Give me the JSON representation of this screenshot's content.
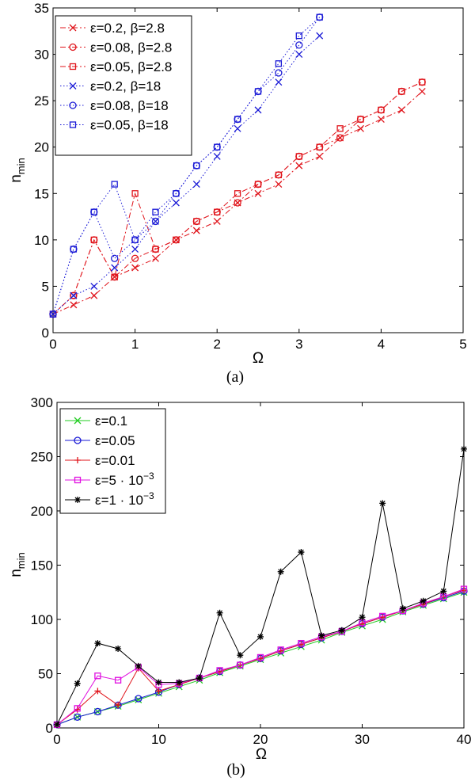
{
  "chart_data": [
    {
      "type": "line",
      "caption": "(a)",
      "xlabel": "Ω",
      "ylabel": "n",
      "ylabel_sub": "min",
      "xlim": [
        0,
        5
      ],
      "ylim": [
        0,
        35
      ],
      "xticks": [
        "0",
        "1",
        "2",
        "3",
        "4",
        "5"
      ],
      "yticks": [
        "0",
        "5",
        "10",
        "15",
        "20",
        "25",
        "30",
        "35"
      ],
      "legend_position": "top-left",
      "series": [
        {
          "name": "ε=0.2, β=2.8",
          "color": "#e0141b",
          "marker": "x",
          "dash": "dashdot",
          "x": [
            0,
            0.25,
            0.5,
            0.75,
            1,
            1.25,
            1.5,
            1.75,
            2,
            2.25,
            2.5,
            2.75,
            3,
            3.25,
            3.5,
            3.75,
            4,
            4.25,
            4.5
          ],
          "y": [
            2,
            3,
            4,
            6,
            7,
            8,
            10,
            11,
            12,
            14,
            15,
            16,
            18,
            19,
            21,
            22,
            23,
            24,
            26
          ]
        },
        {
          "name": "ε=0.08, β=2.8",
          "color": "#e0141b",
          "marker": "o",
          "dash": "dashdot",
          "x": [
            0,
            0.25,
            0.5,
            0.75,
            1,
            1.25,
            1.5,
            1.75,
            2,
            2.25,
            2.5,
            2.75,
            3,
            3.25,
            3.5,
            3.75,
            4,
            4.25,
            4.5
          ],
          "y": [
            2,
            4,
            10,
            6,
            8,
            9,
            10,
            12,
            13,
            14,
            16,
            17,
            19,
            20,
            21,
            23,
            24,
            26,
            27
          ]
        },
        {
          "name": "ε=0.05, β=2.8",
          "color": "#e0141b",
          "marker": "s",
          "dash": "dashdot",
          "x": [
            0,
            0.25,
            0.5,
            0.75,
            1,
            1.25,
            1.5,
            1.75,
            2,
            2.25,
            2.5,
            2.75,
            3,
            3.25,
            3.5,
            3.75,
            4,
            4.25,
            4.5
          ],
          "y": [
            2,
            4,
            10,
            6,
            15,
            9,
            10,
            12,
            13,
            15,
            16,
            17,
            19,
            20,
            22,
            23,
            24,
            26,
            27
          ]
        },
        {
          "name": "ε=0.2, β=18",
          "color": "#1a1ad6",
          "marker": "x",
          "dash": "dotted",
          "x": [
            0,
            0.25,
            0.5,
            0.75,
            1,
            1.25,
            1.5,
            1.75,
            2,
            2.25,
            2.5,
            2.75,
            3,
            3.25
          ],
          "y": [
            2,
            4,
            5,
            7,
            9,
            12,
            14,
            16,
            19,
            22,
            24,
            27,
            30,
            32
          ]
        },
        {
          "name": "ε=0.08, β=18",
          "color": "#1a1ad6",
          "marker": "o",
          "dash": "dotted",
          "x": [
            0,
            0.25,
            0.5,
            0.75,
            1,
            1.25,
            1.5,
            1.75,
            2,
            2.25,
            2.5,
            2.75,
            3,
            3.25
          ],
          "y": [
            2,
            9,
            13,
            8,
            10,
            12,
            15,
            18,
            20,
            23,
            26,
            28,
            31,
            34
          ]
        },
        {
          "name": "ε=0.05, β=18",
          "color": "#1a1ad6",
          "marker": "s",
          "dash": "dotted",
          "x": [
            0,
            0.25,
            0.5,
            0.75,
            1,
            1.25,
            1.5,
            1.75,
            2,
            2.25,
            2.5,
            2.75,
            3,
            3.25
          ],
          "y": [
            2,
            9,
            13,
            16,
            10,
            13,
            15,
            18,
            20,
            23,
            26,
            29,
            32,
            34
          ]
        }
      ]
    },
    {
      "type": "line",
      "caption": "(b)",
      "xlabel": "Ω",
      "ylabel": "n",
      "ylabel_sub": "min",
      "xlim": [
        0,
        40
      ],
      "ylim": [
        0,
        300
      ],
      "xticks": [
        "0",
        "10",
        "20",
        "30",
        "40"
      ],
      "yticks": [
        "0",
        "50",
        "100",
        "150",
        "200",
        "250",
        "300"
      ],
      "legend_position": "top-left",
      "series": [
        {
          "name": "ε=0.1",
          "color": "#22cc22",
          "marker": "x",
          "dash": "solid",
          "x": [
            0,
            2,
            4,
            6,
            8,
            10,
            12,
            14,
            16,
            18,
            20,
            22,
            24,
            26,
            28,
            30,
            32,
            34,
            36,
            38,
            40
          ],
          "y": [
            3,
            10,
            15,
            20,
            26,
            32,
            38,
            44,
            51,
            57,
            63,
            69,
            75,
            81,
            88,
            94,
            100,
            107,
            113,
            119,
            125
          ]
        },
        {
          "name": "ε=0.05",
          "color": "#1a1ad6",
          "marker": "o",
          "dash": "solid",
          "x": [
            0,
            2,
            4,
            6,
            8,
            10,
            12,
            14,
            16,
            18,
            20,
            22,
            24,
            26,
            28,
            30,
            32,
            34,
            36,
            38,
            40
          ],
          "y": [
            3,
            10,
            15,
            21,
            27,
            33,
            40,
            46,
            52,
            58,
            64,
            71,
            77,
            83,
            89,
            96,
            102,
            108,
            114,
            120,
            126
          ]
        },
        {
          "name": "ε=0.01",
          "color": "#e0141b",
          "marker": "+",
          "dash": "solid",
          "x": [
            0,
            2,
            4,
            6,
            8,
            10,
            12,
            14,
            16,
            18,
            20,
            22,
            24,
            26,
            28,
            30,
            32,
            34,
            36,
            38,
            40
          ],
          "y": [
            3,
            17,
            34,
            21,
            55,
            34,
            40,
            46,
            52,
            58,
            64,
            71,
            77,
            83,
            89,
            96,
            102,
            108,
            114,
            121,
            127
          ]
        },
        {
          "name": "ε=5 · 10",
          "name_sup": "−3",
          "color": "#e010e0",
          "marker": "s",
          "dash": "solid",
          "x": [
            0,
            2,
            4,
            6,
            8,
            10,
            12,
            14,
            16,
            18,
            20,
            22,
            24,
            26,
            28,
            30,
            32,
            34,
            36,
            38,
            40
          ],
          "y": [
            3,
            18,
            48,
            44,
            56,
            40,
            41,
            46,
            53,
            58,
            65,
            72,
            78,
            84,
            89,
            97,
            103,
            108,
            115,
            121,
            128
          ]
        },
        {
          "name": "ε=1 · 10",
          "name_sup": "−3",
          "color": "#000000",
          "marker": "*",
          "dash": "solid",
          "x": [
            0,
            2,
            4,
            6,
            8,
            10,
            12,
            14,
            16,
            18,
            20,
            22,
            24,
            26,
            28,
            30,
            32,
            34,
            36,
            38,
            40
          ],
          "y": [
            3,
            41,
            78,
            73,
            57,
            42,
            42,
            46,
            106,
            67,
            84,
            144,
            162,
            85,
            90,
            102,
            207,
            110,
            117,
            126,
            257
          ]
        }
      ]
    }
  ]
}
